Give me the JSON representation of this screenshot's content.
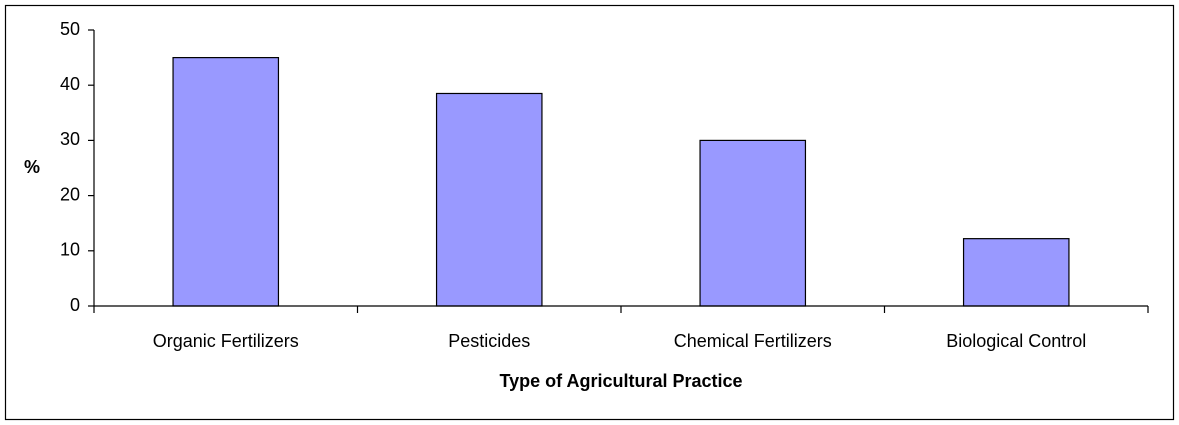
{
  "chart_data": {
    "type": "bar",
    "x_label": "Type of Agricultural Practice",
    "y_label": "%",
    "categories": [
      "Organic Fertilizers",
      "Pesticides",
      "Chemical Fertilizers",
      "Biological Control"
    ],
    "values": [
      45,
      38.5,
      30,
      12.2
    ],
    "color": "#9999ff",
    "ylim": [
      0,
      50
    ],
    "yticks": [
      0,
      10,
      20,
      30,
      40,
      50
    ],
    "grid": false
  }
}
